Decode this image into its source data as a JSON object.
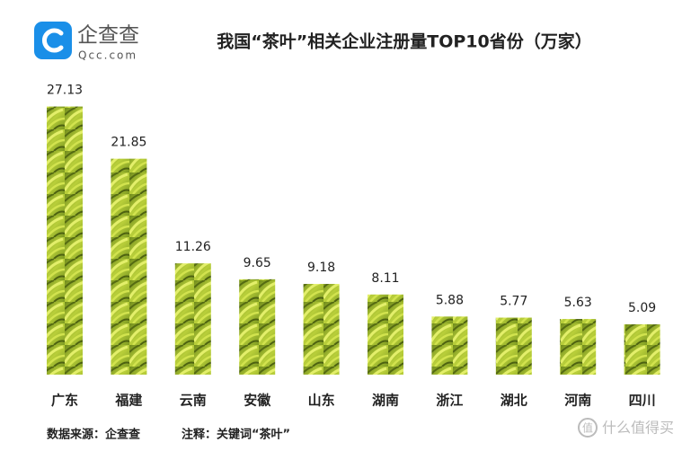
{
  "logo": {
    "name": "企查查",
    "domain": "Qcc.com"
  },
  "watermark": {
    "icon": "值",
    "text": "什么值得买"
  },
  "chart_data": {
    "type": "bar",
    "title": "我国“茶叶”相关企业注册量TOP10省份（万家）",
    "categories": [
      "广东",
      "福建",
      "云南",
      "安徽",
      "山东",
      "湖南",
      "浙江",
      "湖北",
      "河南",
      "四川"
    ],
    "values": [
      27.13,
      21.85,
      11.26,
      9.65,
      9.18,
      8.11,
      5.88,
      5.77,
      5.63,
      5.09
    ],
    "source": "数据来源：企查查",
    "note": "注释：关键词“茶叶”"
  }
}
